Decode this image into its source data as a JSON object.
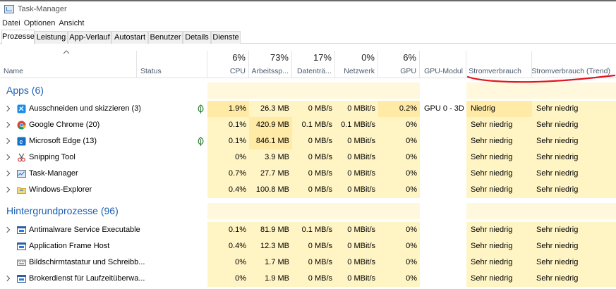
{
  "window": {
    "title": "Task-Manager"
  },
  "menu": [
    "Datei",
    "Optionen",
    "Ansicht"
  ],
  "tabs": [
    "Prozesse",
    "Leistung",
    "App-Verlauf",
    "Autostart",
    "Benutzer",
    "Details",
    "Dienste"
  ],
  "columns": {
    "name": "Name",
    "status": "Status",
    "cpu": {
      "pct": "6%",
      "label": "CPU"
    },
    "mem": {
      "pct": "73%",
      "label": "Arbeitssp..."
    },
    "disk": {
      "pct": "17%",
      "label": "Datenträ..."
    },
    "net": {
      "pct": "0%",
      "label": "Netzwerk"
    },
    "gpu": {
      "pct": "6%",
      "label": "GPU"
    },
    "gpu_engine": {
      "label": "GPU-Modul"
    },
    "power": {
      "label": "Stromverbrauch"
    },
    "power_trend": {
      "label": "Stromverbrauch (Trend)"
    }
  },
  "groups": {
    "apps": "Apps (6)",
    "background": "Hintergrundprozesse (96)"
  },
  "rows": [
    {
      "name": "Ausschneiden und skizzieren (3)",
      "cpu": "1.9%",
      "mem": "26.3 MB",
      "disk": "0 MB/s",
      "net": "0 MBit/s",
      "gpu": "0.2%",
      "engine": "GPU 0 - 3D",
      "power": "Niedrig",
      "trend": "Sehr niedrig"
    },
    {
      "name": "Google Chrome (20)",
      "cpu": "0.1%",
      "mem": "420.9 MB",
      "disk": "0.1 MB/s",
      "net": "0.1 MBit/s",
      "gpu": "0%",
      "engine": "",
      "power": "Sehr niedrig",
      "trend": "Sehr niedrig"
    },
    {
      "name": "Microsoft Edge (13)",
      "cpu": "0.1%",
      "mem": "846.1 MB",
      "disk": "0 MB/s",
      "net": "0 MBit/s",
      "gpu": "0%",
      "engine": "",
      "power": "Sehr niedrig",
      "trend": "Sehr niedrig"
    },
    {
      "name": "Snipping Tool",
      "cpu": "0%",
      "mem": "3.9 MB",
      "disk": "0 MB/s",
      "net": "0 MBit/s",
      "gpu": "0%",
      "engine": "",
      "power": "Sehr niedrig",
      "trend": "Sehr niedrig"
    },
    {
      "name": "Task-Manager",
      "cpu": "0.7%",
      "mem": "27.7 MB",
      "disk": "0 MB/s",
      "net": "0 MBit/s",
      "gpu": "0%",
      "engine": "",
      "power": "Sehr niedrig",
      "trend": "Sehr niedrig"
    },
    {
      "name": "Windows-Explorer",
      "cpu": "0.4%",
      "mem": "100.8 MB",
      "disk": "0 MB/s",
      "net": "0 MBit/s",
      "gpu": "0%",
      "engine": "",
      "power": "Sehr niedrig",
      "trend": "Sehr niedrig"
    },
    {
      "name": "Antimalware Service Executable",
      "cpu": "0.1%",
      "mem": "81.9 MB",
      "disk": "0.1 MB/s",
      "net": "0 MBit/s",
      "gpu": "0%",
      "engine": "",
      "power": "Sehr niedrig",
      "trend": "Sehr niedrig"
    },
    {
      "name": "Application Frame Host",
      "cpu": "0.4%",
      "mem": "12.3 MB",
      "disk": "0 MB/s",
      "net": "0 MBit/s",
      "gpu": "0%",
      "engine": "",
      "power": "Sehr niedrig",
      "trend": "Sehr niedrig"
    },
    {
      "name": "Bildschirmtastatur und Schreibb...",
      "cpu": "0%",
      "mem": "1.7 MB",
      "disk": "0 MB/s",
      "net": "0 MBit/s",
      "gpu": "0%",
      "engine": "",
      "power": "Sehr niedrig",
      "trend": "Sehr niedrig"
    },
    {
      "name": "Brokerdienst für Laufzeitüberwa...",
      "cpu": "0%",
      "mem": "1.9 MB",
      "disk": "0 MB/s",
      "net": "0 MBit/s",
      "gpu": "0%",
      "engine": "",
      "power": "Sehr niedrig",
      "trend": "Sehr niedrig"
    }
  ],
  "colors": {
    "group_title": "#1a5fb4",
    "heat_low": "#fff4c4",
    "heat_mid": "#ffeaa6",
    "annotation": "#e2141c"
  }
}
